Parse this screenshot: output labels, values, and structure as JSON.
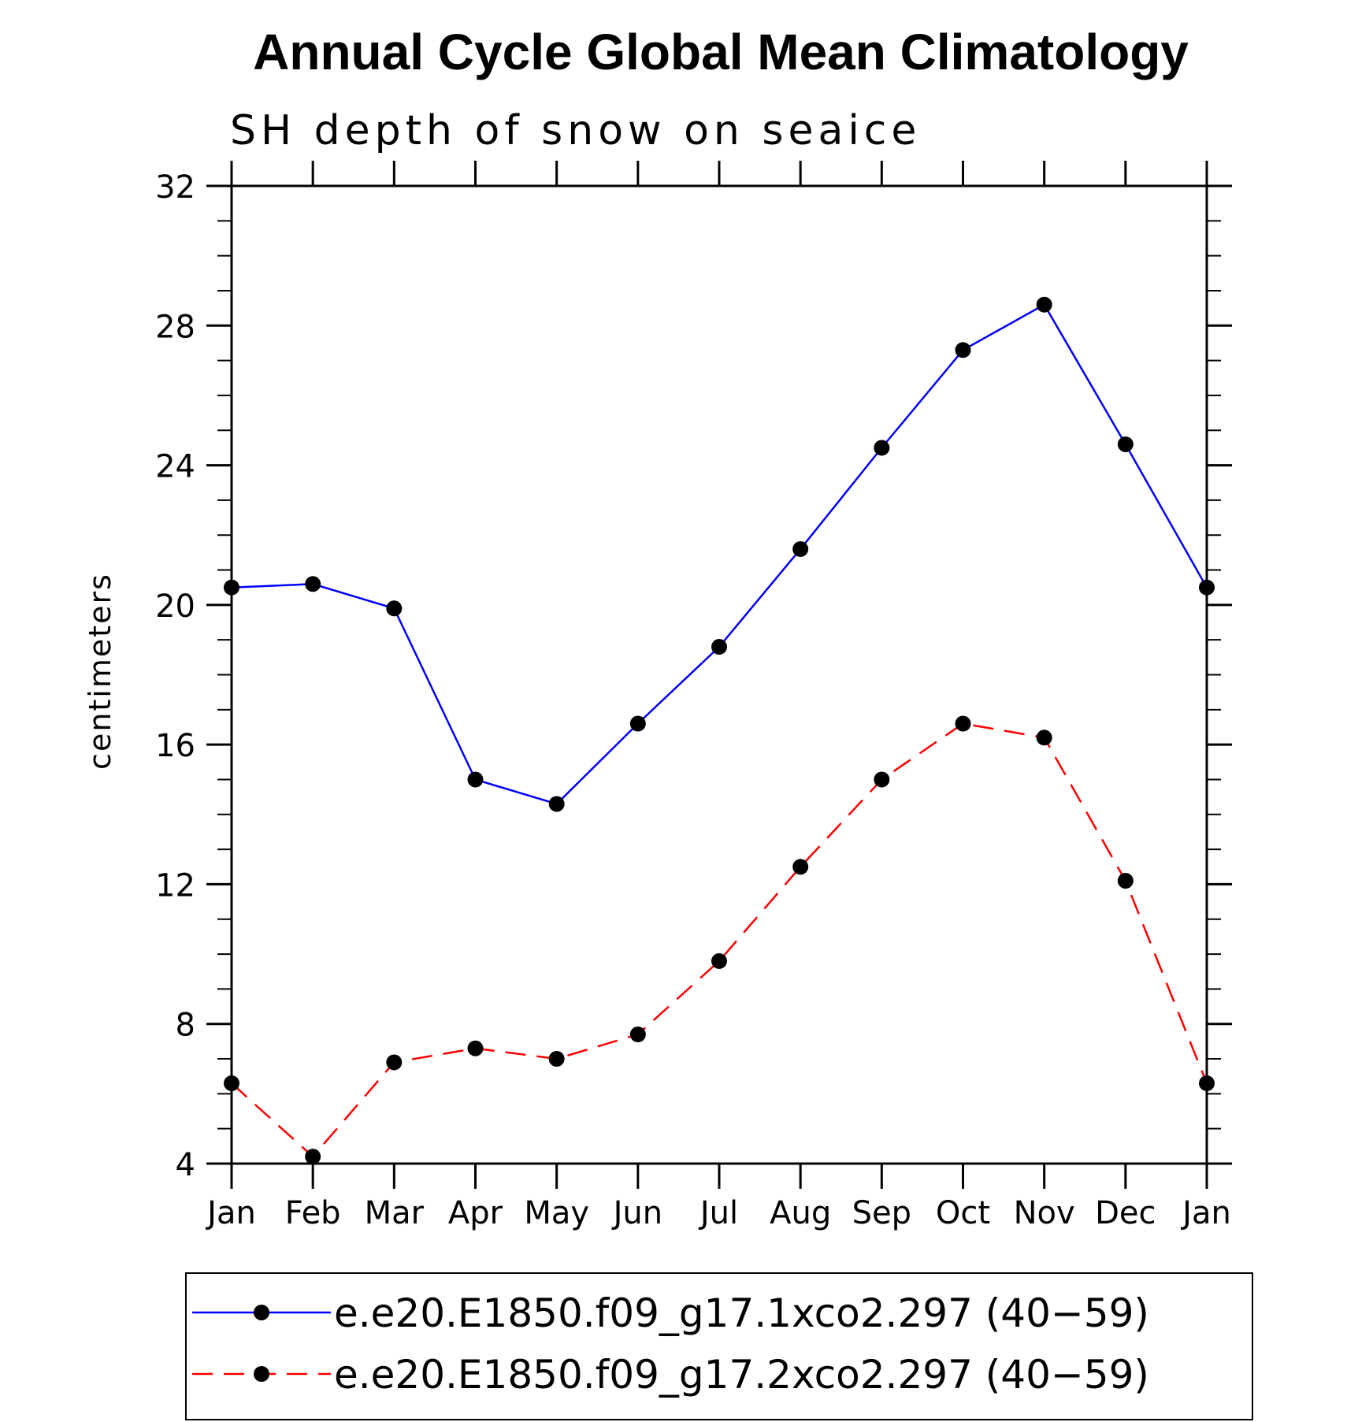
{
  "chart_data": {
    "type": "line",
    "title": "Annual Cycle Global Mean Climatology",
    "subtitle": "SH depth of snow on seaice",
    "xlabel": "",
    "ylabel": "centimeters",
    "categories": [
      "Jan",
      "Feb",
      "Mar",
      "Apr",
      "May",
      "Jun",
      "Jul",
      "Aug",
      "Sep",
      "Oct",
      "Nov",
      "Dec",
      "Jan"
    ],
    "ylim": [
      4,
      32
    ],
    "yticks": [
      4,
      8,
      12,
      16,
      20,
      24,
      28,
      32
    ],
    "yminor_step": 1,
    "grid": false,
    "legend_position": "bottom",
    "series": [
      {
        "name": "e.e20.E1850.f09_g17.1xco2.297 (40−59)",
        "color": "#0000ff",
        "dash": "solid",
        "marker": "filled-circle",
        "values": [
          20.5,
          20.6,
          19.9,
          15.0,
          14.3,
          16.6,
          18.8,
          21.6,
          24.5,
          27.3,
          28.6,
          24.6,
          20.5
        ]
      },
      {
        "name": "e.e20.E1850.f09_g17.2xco2.297 (40−59)",
        "color": "#ff0000",
        "dash": "dashed",
        "marker": "filled-circle",
        "values": [
          6.3,
          4.2,
          6.9,
          7.3,
          7.0,
          7.7,
          9.8,
          12.5,
          15.0,
          16.6,
          16.2,
          12.1,
          6.3
        ]
      }
    ]
  }
}
